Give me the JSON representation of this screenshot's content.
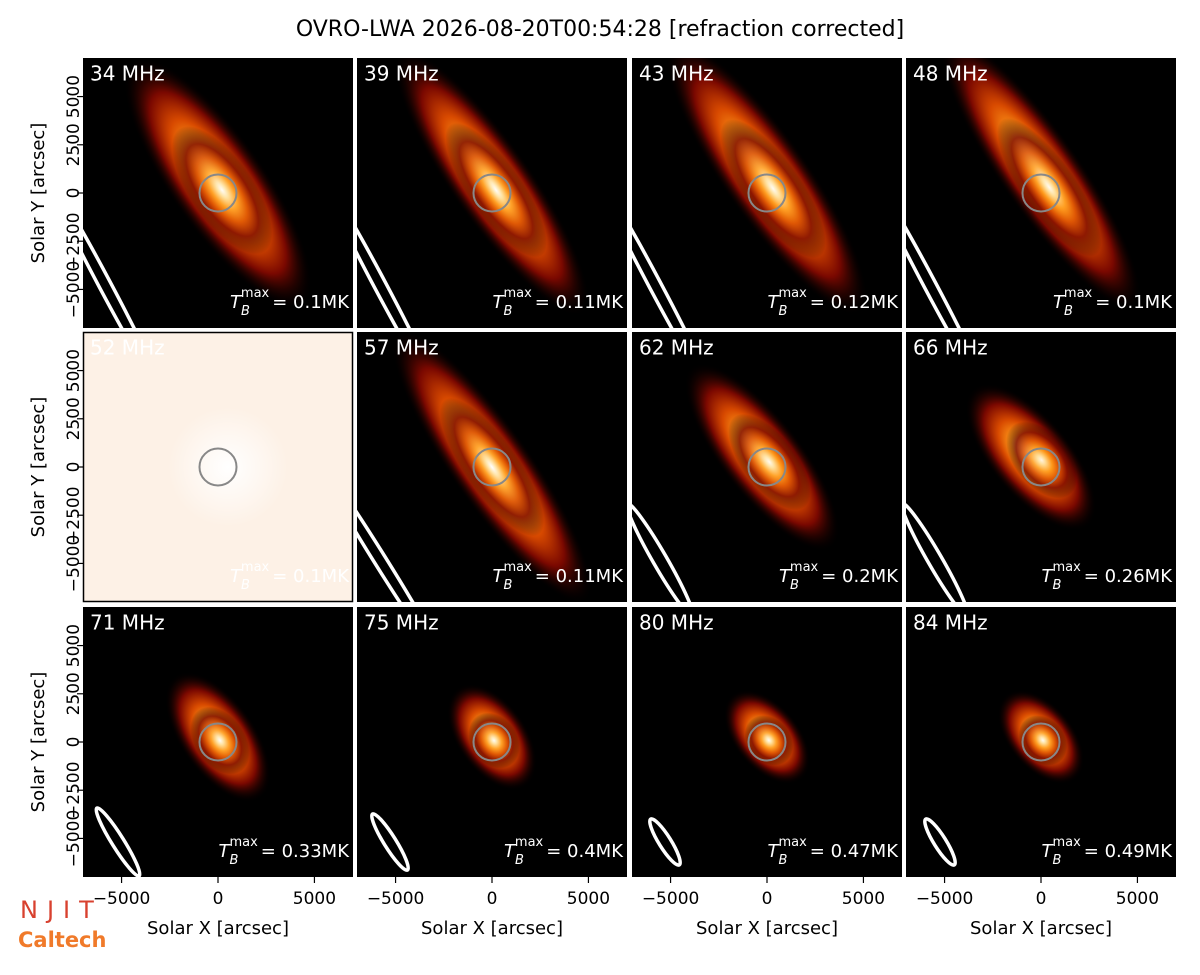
{
  "title": "OVRO-LWA 2026-08-20T00:54:28 [refraction corrected]",
  "logos": {
    "njit": "NJIT",
    "caltech": "Caltech"
  },
  "chart_data": [
    {
      "type": "image",
      "title": "34 MHz",
      "annotation": {
        "base": "T",
        "sub": "B",
        "sup": "max",
        "text": "= 0.1MK"
      },
      "xlim": [
        -7000,
        7000
      ],
      "ylim": [
        -7000,
        7000
      ],
      "yticks": [
        {
          "value": -5000,
          "label": "−5000"
        },
        {
          "value": -2500,
          "label": "−2500"
        },
        0,
        2500,
        5000
      ],
      "ylabel": "Solar Y [arcsec]"
    },
    {
      "type": "image",
      "title": "39 MHz",
      "annotation": {
        "base": "T",
        "sub": "B",
        "sup": "max",
        "text": "= 0.11MK"
      },
      "xlim": [
        -7000,
        7000
      ],
      "ylim": [
        -7000,
        7000
      ]
    },
    {
      "type": "image",
      "title": "43 MHz",
      "annotation": {
        "base": "T",
        "sub": "B",
        "sup": "max",
        "text": "= 0.12MK"
      },
      "xlim": [
        -7000,
        7000
      ],
      "ylim": [
        -7000,
        7000
      ]
    },
    {
      "type": "image",
      "title": "48 MHz",
      "annotation": {
        "base": "T",
        "sub": "B",
        "sup": "max",
        "text": "= 0.1MK"
      },
      "xlim": [
        -7000,
        7000
      ],
      "ylim": [
        -7000,
        7000
      ]
    },
    {
      "type": "image",
      "title": "52 MHz",
      "annotation": {
        "base": "T",
        "sub": "B",
        "sup": "max",
        "text": "= 0.1MK"
      },
      "xlim": [
        -7000,
        7000
      ],
      "ylim": [
        -7000,
        7000
      ],
      "yticks": [
        {
          "value": -5000,
          "label": "−5000"
        },
        {
          "value": -2500,
          "label": "−2500"
        },
        0,
        2500,
        5000
      ],
      "ylabel": "Solar Y [arcsec]"
    },
    {
      "type": "image",
      "title": "57 MHz",
      "annotation": {
        "base": "T",
        "sub": "B",
        "sup": "max",
        "text": "= 0.11MK"
      },
      "xlim": [
        -7000,
        7000
      ],
      "ylim": [
        -7000,
        7000
      ]
    },
    {
      "type": "image",
      "title": "62 MHz",
      "annotation": {
        "base": "T",
        "sub": "B",
        "sup": "max",
        "text": "= 0.2MK"
      },
      "xlim": [
        -7000,
        7000
      ],
      "ylim": [
        -7000,
        7000
      ]
    },
    {
      "type": "image",
      "title": "66 MHz",
      "annotation": {
        "base": "T",
        "sub": "B",
        "sup": "max",
        "text": "= 0.26MK"
      },
      "xlim": [
        -7000,
        7000
      ],
      "ylim": [
        -7000,
        7000
      ]
    },
    {
      "type": "image",
      "title": "71 MHz",
      "annotation": {
        "base": "T",
        "sub": "B",
        "sup": "max",
        "text": "= 0.33MK"
      },
      "xlim": [
        -7000,
        7000
      ],
      "ylim": [
        -7000,
        7000
      ],
      "yticks": [
        {
          "value": -5000,
          "label": "−5000"
        },
        {
          "value": -2500,
          "label": "−2500"
        },
        0,
        2500,
        5000
      ],
      "ylabel": "Solar Y [arcsec]",
      "xticks": [
        {
          "value": -5000,
          "label": "−5000"
        },
        0,
        5000
      ],
      "xlabel": "Solar X [arcsec]"
    },
    {
      "type": "image",
      "title": "75 MHz",
      "annotation": {
        "base": "T",
        "sub": "B",
        "sup": "max",
        "text": "= 0.4MK"
      },
      "xlim": [
        -7000,
        7000
      ],
      "ylim": [
        -7000,
        7000
      ],
      "xticks": [
        {
          "value": -5000,
          "label": "−5000"
        },
        0,
        5000
      ],
      "xlabel": "Solar X [arcsec]"
    },
    {
      "type": "image",
      "title": "80 MHz",
      "annotation": {
        "base": "T",
        "sub": "B",
        "sup": "max",
        "text": "= 0.47MK"
      },
      "xlim": [
        -7000,
        7000
      ],
      "ylim": [
        -7000,
        7000
      ],
      "xticks": [
        {
          "value": -5000,
          "label": "−5000"
        },
        0,
        5000
      ],
      "xlabel": "Solar X [arcsec]"
    },
    {
      "type": "image",
      "title": "84 MHz",
      "annotation": {
        "base": "T",
        "sub": "B",
        "sup": "max",
        "text": "= 0.49MK"
      },
      "xlim": [
        -7000,
        7000
      ],
      "ylim": [
        -7000,
        7000
      ],
      "xticks": [
        {
          "value": -5000,
          "label": "−5000"
        },
        0,
        5000
      ],
      "xlabel": "Solar X [arcsec]"
    }
  ]
}
